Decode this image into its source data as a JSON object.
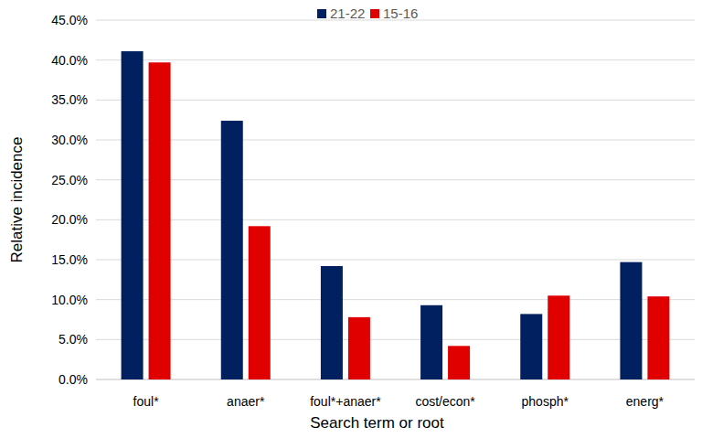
{
  "chart_data": {
    "type": "bar",
    "x_label": "Search term or root",
    "y_label": "Relative incidence",
    "categories": [
      "foul*",
      "anaer*",
      "foul*+anaer*",
      "cost/econ*",
      "phosph*",
      "energ*"
    ],
    "series": [
      {
        "name": "21-22",
        "color": "#002060",
        "values": [
          41.1,
          32.4,
          14.2,
          9.3,
          8.2,
          14.7
        ]
      },
      {
        "name": "15-16",
        "color": "#e00000",
        "values": [
          39.7,
          19.2,
          7.8,
          4.2,
          10.5,
          10.4
        ]
      }
    ],
    "ylim": [
      0,
      45
    ],
    "yticks": [
      {
        "value": 0,
        "label": "0.0%"
      },
      {
        "value": 5,
        "label": "5.0%"
      },
      {
        "value": 10,
        "label": "10.0%"
      },
      {
        "value": 15,
        "label": "15.0%"
      },
      {
        "value": 20,
        "label": "20.0%"
      },
      {
        "value": 25,
        "label": "25.0%"
      },
      {
        "value": 30,
        "label": "30.0%"
      },
      {
        "value": 35,
        "label": "35.0%"
      },
      {
        "value": 40,
        "label": "40.0%"
      },
      {
        "value": 45,
        "label": "45.0%"
      }
    ],
    "grid": true,
    "legend": "top"
  }
}
